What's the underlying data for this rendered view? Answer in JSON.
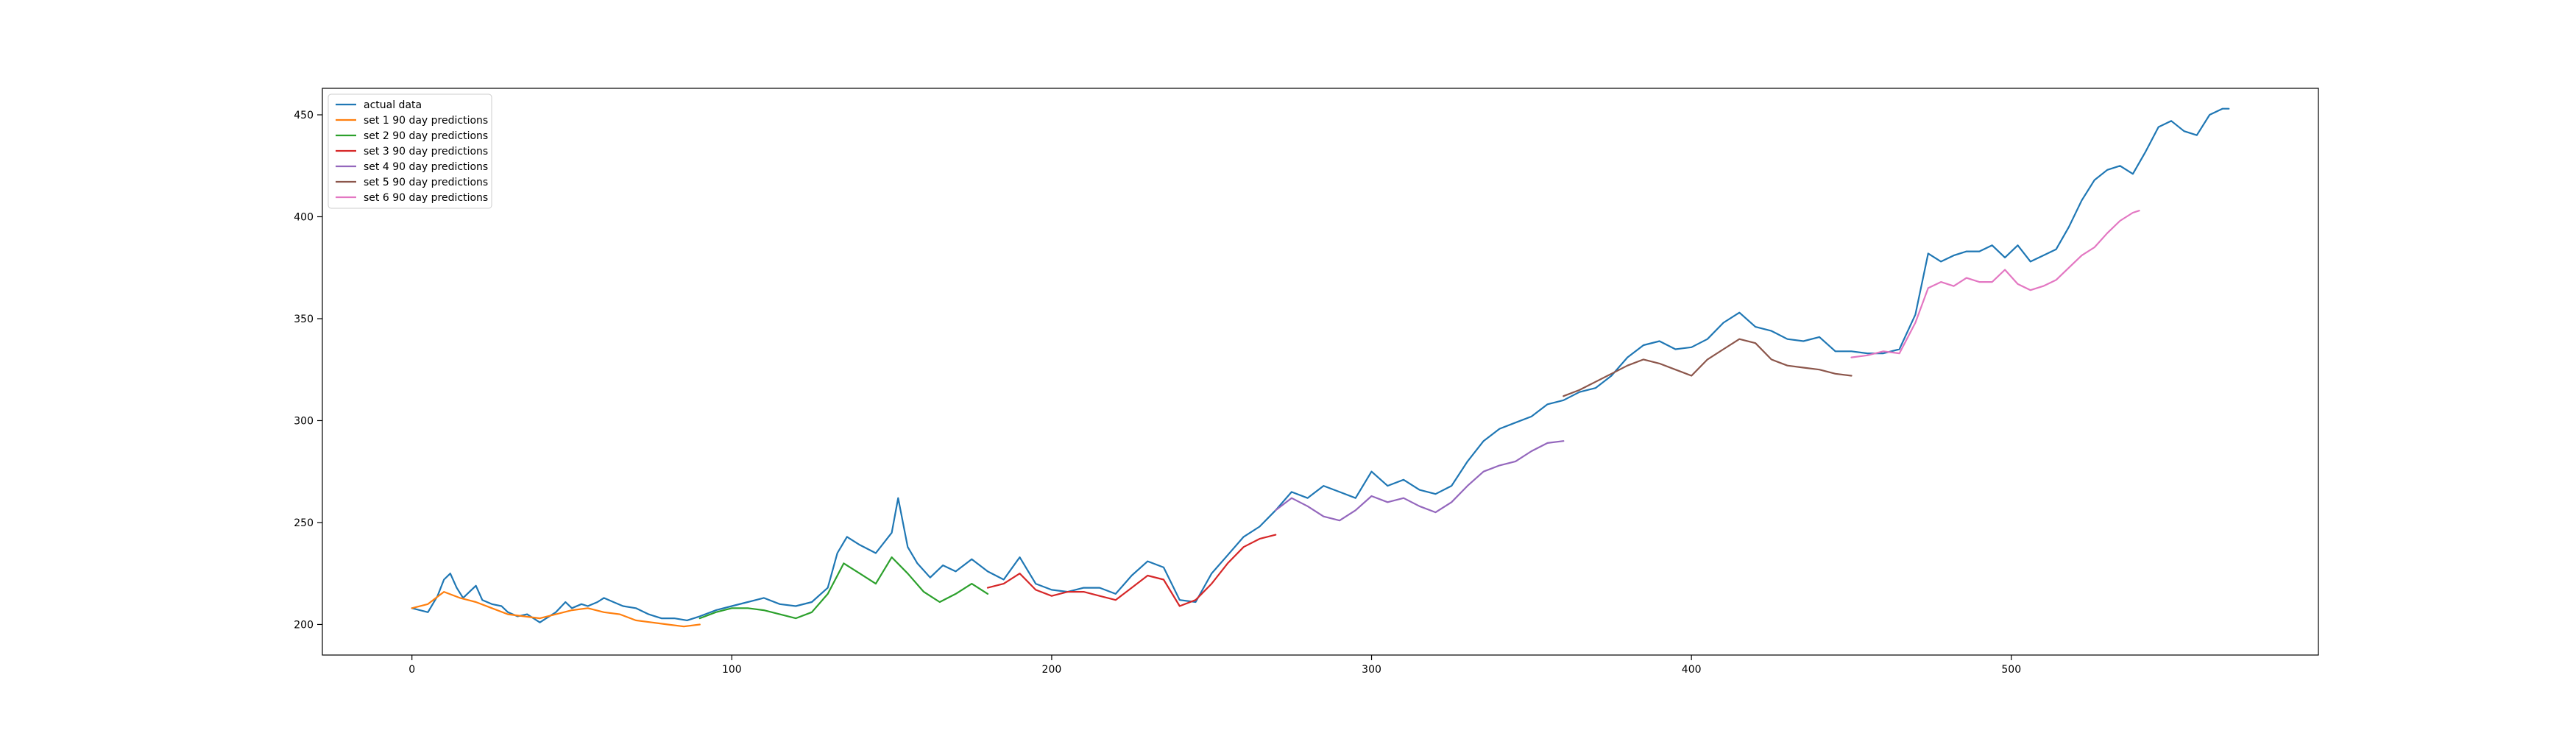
{
  "chart_data": {
    "type": "line",
    "title": "",
    "xlabel": "",
    "ylabel": "",
    "xlim": [
      -28,
      596
    ],
    "ylim": [
      185,
      463
    ],
    "x_ticks": [
      0,
      100,
      200,
      300,
      400,
      500
    ],
    "y_ticks": [
      200,
      250,
      300,
      350,
      400,
      450
    ],
    "grid": false,
    "legend_position": "upper left",
    "series": [
      {
        "name": "actual data",
        "color": "#1f77b4",
        "points": [
          [
            0,
            208
          ],
          [
            5,
            206
          ],
          [
            8,
            214
          ],
          [
            10,
            222
          ],
          [
            12,
            225
          ],
          [
            14,
            218
          ],
          [
            16,
            213
          ],
          [
            18,
            216
          ],
          [
            20,
            219
          ],
          [
            22,
            212
          ],
          [
            25,
            210
          ],
          [
            28,
            209
          ],
          [
            30,
            206
          ],
          [
            33,
            204
          ],
          [
            36,
            205
          ],
          [
            40,
            201
          ],
          [
            42,
            203
          ],
          [
            45,
            206
          ],
          [
            48,
            211
          ],
          [
            50,
            208
          ],
          [
            53,
            210
          ],
          [
            55,
            209
          ],
          [
            58,
            211
          ],
          [
            60,
            213
          ],
          [
            63,
            211
          ],
          [
            66,
            209
          ],
          [
            70,
            208
          ],
          [
            74,
            205
          ],
          [
            78,
            203
          ],
          [
            82,
            203
          ],
          [
            86,
            202
          ],
          [
            90,
            204
          ],
          [
            95,
            207
          ],
          [
            100,
            209
          ],
          [
            105,
            211
          ],
          [
            110,
            213
          ],
          [
            115,
            210
          ],
          [
            120,
            209
          ],
          [
            125,
            211
          ],
          [
            130,
            218
          ],
          [
            133,
            235
          ],
          [
            136,
            243
          ],
          [
            140,
            239
          ],
          [
            145,
            235
          ],
          [
            150,
            245
          ],
          [
            152,
            262
          ],
          [
            155,
            238
          ],
          [
            158,
            230
          ],
          [
            162,
            223
          ],
          [
            166,
            229
          ],
          [
            170,
            226
          ],
          [
            175,
            232
          ],
          [
            180,
            226
          ],
          [
            185,
            222
          ],
          [
            190,
            233
          ],
          [
            195,
            220
          ],
          [
            200,
            217
          ],
          [
            205,
            216
          ],
          [
            210,
            218
          ],
          [
            215,
            218
          ],
          [
            220,
            215
          ],
          [
            225,
            224
          ],
          [
            230,
            231
          ],
          [
            235,
            228
          ],
          [
            240,
            212
          ],
          [
            245,
            211
          ],
          [
            250,
            225
          ],
          [
            255,
            234
          ],
          [
            260,
            243
          ],
          [
            265,
            248
          ],
          [
            270,
            256
          ],
          [
            275,
            265
          ],
          [
            280,
            262
          ],
          [
            285,
            268
          ],
          [
            290,
            265
          ],
          [
            295,
            262
          ],
          [
            300,
            275
          ],
          [
            305,
            268
          ],
          [
            310,
            271
          ],
          [
            315,
            266
          ],
          [
            320,
            264
          ],
          [
            325,
            268
          ],
          [
            330,
            280
          ],
          [
            335,
            290
          ],
          [
            340,
            296
          ],
          [
            345,
            299
          ],
          [
            350,
            302
          ],
          [
            355,
            308
          ],
          [
            360,
            310
          ],
          [
            365,
            314
          ],
          [
            370,
            316
          ],
          [
            375,
            322
          ],
          [
            380,
            331
          ],
          [
            385,
            337
          ],
          [
            390,
            339
          ],
          [
            395,
            335
          ],
          [
            400,
            336
          ],
          [
            405,
            340
          ],
          [
            410,
            348
          ],
          [
            415,
            353
          ],
          [
            420,
            346
          ],
          [
            425,
            344
          ],
          [
            430,
            340
          ],
          [
            435,
            339
          ],
          [
            440,
            341
          ],
          [
            445,
            334
          ],
          [
            450,
            334
          ],
          [
            455,
            333
          ],
          [
            460,
            333
          ],
          [
            465,
            335
          ],
          [
            470,
            352
          ],
          [
            474,
            382
          ],
          [
            478,
            378
          ],
          [
            482,
            381
          ],
          [
            486,
            383
          ],
          [
            490,
            383
          ],
          [
            494,
            386
          ],
          [
            498,
            380
          ],
          [
            502,
            386
          ],
          [
            506,
            378
          ],
          [
            510,
            381
          ],
          [
            514,
            384
          ],
          [
            518,
            395
          ],
          [
            522,
            408
          ],
          [
            526,
            418
          ],
          [
            530,
            423
          ],
          [
            534,
            425
          ],
          [
            538,
            421
          ],
          [
            542,
            432
          ],
          [
            546,
            444
          ],
          [
            550,
            447
          ],
          [
            554,
            442
          ],
          [
            558,
            440
          ],
          [
            562,
            450
          ],
          [
            566,
            453
          ],
          [
            568,
            453
          ]
        ]
      },
      {
        "name": "set 1 90 day predictions",
        "color": "#ff7f0e",
        "points": [
          [
            0,
            208
          ],
          [
            5,
            210
          ],
          [
            10,
            216
          ],
          [
            15,
            213
          ],
          [
            20,
            211
          ],
          [
            25,
            208
          ],
          [
            30,
            205
          ],
          [
            35,
            204
          ],
          [
            40,
            203
          ],
          [
            45,
            205
          ],
          [
            50,
            207
          ],
          [
            55,
            208
          ],
          [
            60,
            206
          ],
          [
            65,
            205
          ],
          [
            70,
            202
          ],
          [
            75,
            201
          ],
          [
            80,
            200
          ],
          [
            85,
            199
          ],
          [
            90,
            200
          ]
        ]
      },
      {
        "name": "set 2 90 day predictions",
        "color": "#2ca02c",
        "points": [
          [
            90,
            203
          ],
          [
            95,
            206
          ],
          [
            100,
            208
          ],
          [
            105,
            208
          ],
          [
            110,
            207
          ],
          [
            115,
            205
          ],
          [
            120,
            203
          ],
          [
            125,
            206
          ],
          [
            130,
            215
          ],
          [
            135,
            230
          ],
          [
            140,
            225
          ],
          [
            145,
            220
          ],
          [
            150,
            233
          ],
          [
            155,
            225
          ],
          [
            160,
            216
          ],
          [
            165,
            211
          ],
          [
            170,
            215
          ],
          [
            175,
            220
          ],
          [
            180,
            215
          ]
        ]
      },
      {
        "name": "set 3 90 day predictions",
        "color": "#d62728",
        "points": [
          [
            180,
            218
          ],
          [
            185,
            220
          ],
          [
            190,
            225
          ],
          [
            195,
            217
          ],
          [
            200,
            214
          ],
          [
            205,
            216
          ],
          [
            210,
            216
          ],
          [
            215,
            214
          ],
          [
            220,
            212
          ],
          [
            225,
            218
          ],
          [
            230,
            224
          ],
          [
            235,
            222
          ],
          [
            240,
            209
          ],
          [
            245,
            212
          ],
          [
            250,
            220
          ],
          [
            255,
            230
          ],
          [
            260,
            238
          ],
          [
            265,
            242
          ],
          [
            270,
            244
          ]
        ]
      },
      {
        "name": "set 4 90 day predictions",
        "color": "#9467bd",
        "points": [
          [
            270,
            256
          ],
          [
            275,
            262
          ],
          [
            280,
            258
          ],
          [
            285,
            253
          ],
          [
            290,
            251
          ],
          [
            295,
            256
          ],
          [
            300,
            263
          ],
          [
            305,
            260
          ],
          [
            310,
            262
          ],
          [
            315,
            258
          ],
          [
            320,
            255
          ],
          [
            325,
            260
          ],
          [
            330,
            268
          ],
          [
            335,
            275
          ],
          [
            340,
            278
          ],
          [
            345,
            280
          ],
          [
            350,
            285
          ],
          [
            355,
            289
          ],
          [
            360,
            290
          ]
        ]
      },
      {
        "name": "set 5 90 day predictions",
        "color": "#8c564b",
        "points": [
          [
            360,
            312
          ],
          [
            365,
            315
          ],
          [
            370,
            319
          ],
          [
            375,
            323
          ],
          [
            380,
            327
          ],
          [
            385,
            330
          ],
          [
            390,
            328
          ],
          [
            395,
            325
          ],
          [
            400,
            322
          ],
          [
            405,
            330
          ],
          [
            410,
            335
          ],
          [
            415,
            340
          ],
          [
            420,
            338
          ],
          [
            425,
            330
          ],
          [
            430,
            327
          ],
          [
            435,
            326
          ],
          [
            440,
            325
          ],
          [
            445,
            323
          ],
          [
            450,
            322
          ]
        ]
      },
      {
        "name": "set 6 90 day predictions",
        "color": "#e377c2",
        "points": [
          [
            450,
            331
          ],
          [
            455,
            332
          ],
          [
            460,
            334
          ],
          [
            465,
            333
          ],
          [
            470,
            348
          ],
          [
            474,
            365
          ],
          [
            478,
            368
          ],
          [
            482,
            366
          ],
          [
            486,
            370
          ],
          [
            490,
            368
          ],
          [
            494,
            368
          ],
          [
            498,
            374
          ],
          [
            502,
            367
          ],
          [
            506,
            364
          ],
          [
            510,
            366
          ],
          [
            514,
            369
          ],
          [
            518,
            375
          ],
          [
            522,
            381
          ],
          [
            526,
            385
          ],
          [
            530,
            392
          ],
          [
            534,
            398
          ],
          [
            538,
            402
          ],
          [
            540,
            403
          ]
        ]
      }
    ]
  }
}
